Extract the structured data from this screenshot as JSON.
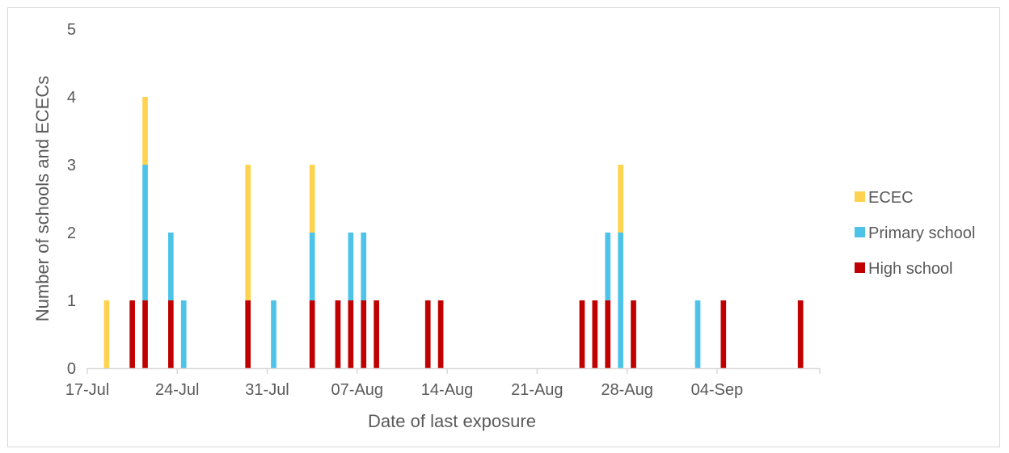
{
  "chart_data": {
    "type": "bar",
    "stacked": true,
    "xlabel": "Date of last exposure",
    "ylabel": "Number of schools and ECECs",
    "ylim": [
      0,
      5
    ],
    "yticks": [
      0,
      1,
      2,
      3,
      4,
      5
    ],
    "x_axis_type": "date",
    "x_range": [
      "2020-07-17",
      "2020-09-12"
    ],
    "x_tick_dates": [
      "2020-07-17",
      "2020-07-24",
      "2020-07-31",
      "2020-08-07",
      "2020-08-14",
      "2020-08-21",
      "2020-08-28",
      "2020-09-04"
    ],
    "x_tick_labels": [
      "17-Jul",
      "24-Jul",
      "31-Jul",
      "07-Aug",
      "14-Aug",
      "21-Aug",
      "28-Aug",
      "04-Sep"
    ],
    "legend_position": "right",
    "grid": false,
    "dates": [
      "2020-07-18",
      "2020-07-20",
      "2020-07-21",
      "2020-07-23",
      "2020-07-24",
      "2020-07-29",
      "2020-07-31",
      "2020-08-03",
      "2020-08-05",
      "2020-08-06",
      "2020-08-07",
      "2020-08-08",
      "2020-08-12",
      "2020-08-13",
      "2020-08-24",
      "2020-08-25",
      "2020-08-26",
      "2020-08-27",
      "2020-08-28",
      "2020-09-02",
      "2020-09-04",
      "2020-09-10"
    ],
    "series": [
      {
        "name": "High school",
        "color": "#c00000",
        "values": [
          0,
          1,
          1,
          1,
          0,
          1,
          0,
          1,
          1,
          1,
          1,
          1,
          1,
          1,
          1,
          1,
          1,
          0,
          1,
          0,
          1,
          1
        ]
      },
      {
        "name": "Primary school",
        "color": "#4dc3e8",
        "values": [
          0,
          0,
          2,
          1,
          1,
          0,
          1,
          1,
          0,
          1,
          1,
          0,
          0,
          0,
          0,
          0,
          1,
          2,
          0,
          1,
          0,
          0
        ]
      },
      {
        "name": "ECEC",
        "color": "#ffd34f",
        "values": [
          1,
          0,
          1,
          0,
          0,
          2,
          0,
          1,
          0,
          0,
          0,
          0,
          0,
          0,
          0,
          0,
          0,
          1,
          0,
          0,
          0,
          0
        ]
      }
    ],
    "legend_order": [
      "ECEC",
      "Primary school",
      "High school"
    ]
  }
}
